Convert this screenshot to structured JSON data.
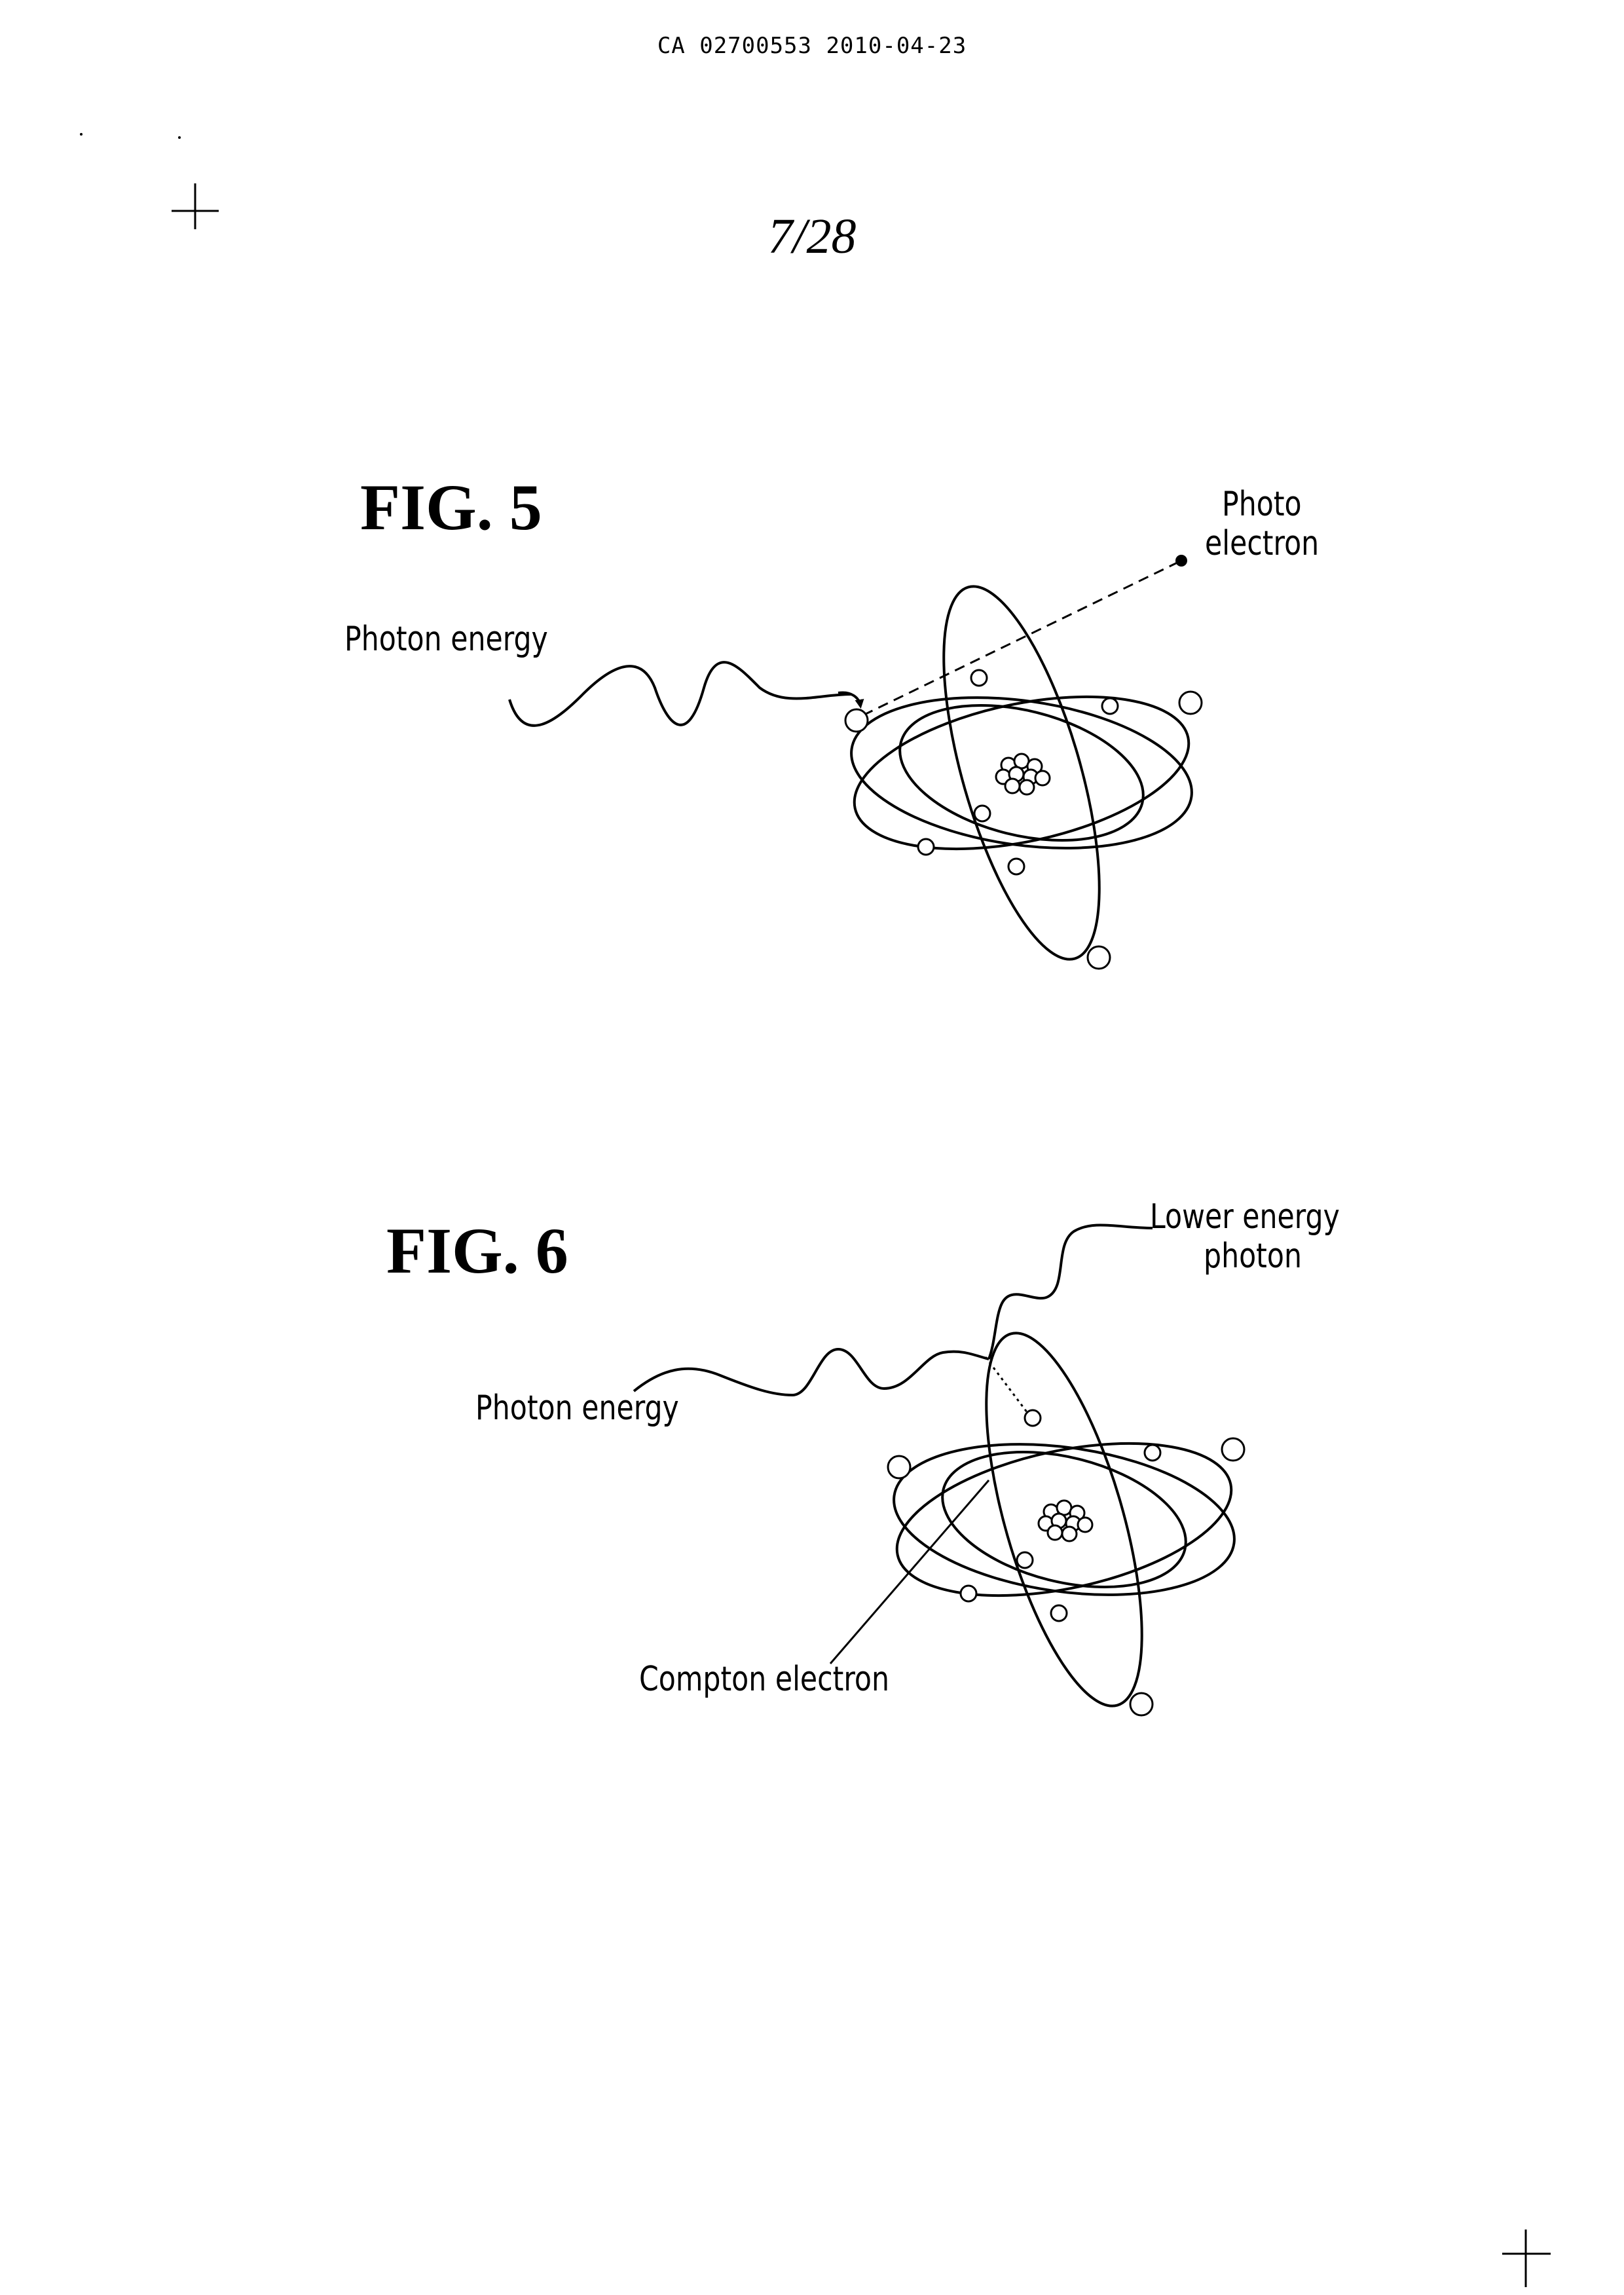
{
  "header": {
    "doc_id": "CA 02700553 2010-04-23"
  },
  "page_number": "7/28",
  "fig5": {
    "title": "FIG. 5",
    "label_photon_energy": "Photon energy",
    "label_photo_electron_line1": "Photo",
    "label_photo_electron_line2": "electron"
  },
  "fig6": {
    "title": "FIG. 6",
    "label_photon_energy": "Photon energy",
    "label_lower_energy_line1": "Lower energy",
    "label_lower_energy_line2": "photon",
    "label_compton_electron": "Compton electron"
  }
}
